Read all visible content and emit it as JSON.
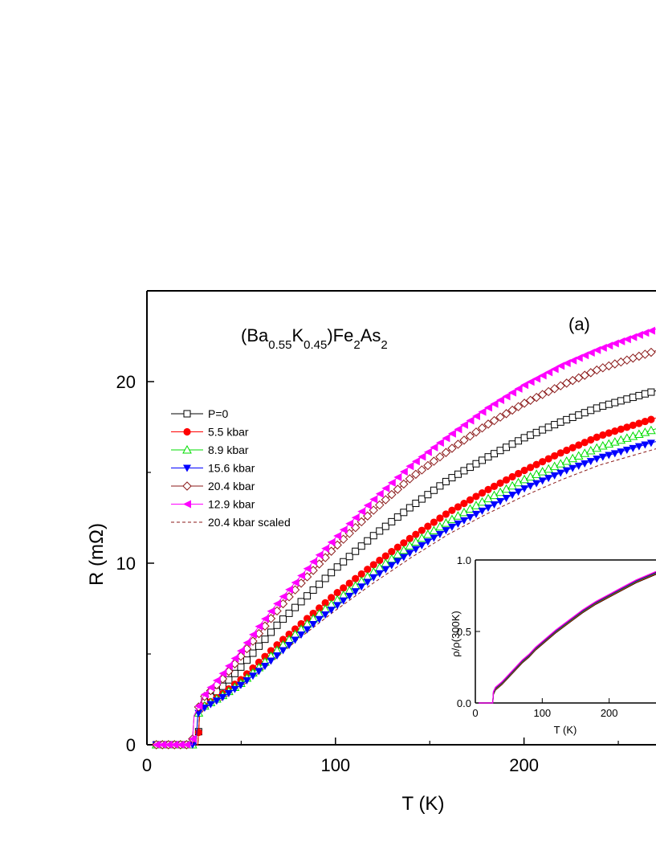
{
  "chart_data": {
    "type": "scatter",
    "xlabel": "T (K)",
    "ylabel": "R (mΩ)",
    "xlim": [
      0,
      270
    ],
    "ylim": [
      0,
      25
    ],
    "xticks": [
      0,
      100,
      200
    ],
    "yticks": [
      0,
      10,
      20
    ],
    "formula": {
      "open": "(Ba",
      "sub1": "0.55",
      "k": "K",
      "sub2": "0.45",
      "close": ")Fe",
      "sub3": "2",
      "as": "As",
      "sub4": "2"
    },
    "panel_label": "(a)",
    "legend_position": "left",
    "series": [
      {
        "name": "P=0",
        "marker": "open-square",
        "color": "#000000",
        "tc": 28,
        "points": [
          [
            5,
            0
          ],
          [
            20,
            0
          ],
          [
            27,
            0
          ],
          [
            28,
            1.8
          ],
          [
            30,
            2.3
          ],
          [
            40,
            3.2
          ],
          [
            50,
            4.3
          ],
          [
            60,
            5.5
          ],
          [
            70,
            6.7
          ],
          [
            80,
            7.7
          ],
          [
            90,
            8.7
          ],
          [
            100,
            9.7
          ],
          [
            120,
            11.5
          ],
          [
            140,
            13.1
          ],
          [
            160,
            14.6
          ],
          [
            180,
            15.8
          ],
          [
            200,
            16.9
          ],
          [
            220,
            17.8
          ],
          [
            240,
            18.6
          ],
          [
            270,
            19.5
          ]
        ]
      },
      {
        "name": "5.5 kbar",
        "marker": "filled-circle",
        "color": "#ff0000",
        "tc": 28,
        "points": [
          [
            5,
            0
          ],
          [
            20,
            0
          ],
          [
            27,
            0
          ],
          [
            28,
            1.7
          ],
          [
            30,
            2.1
          ],
          [
            40,
            2.8
          ],
          [
            50,
            3.6
          ],
          [
            60,
            4.6
          ],
          [
            70,
            5.6
          ],
          [
            80,
            6.5
          ],
          [
            90,
            7.4
          ],
          [
            100,
            8.3
          ],
          [
            120,
            9.9
          ],
          [
            140,
            11.4
          ],
          [
            160,
            12.8
          ],
          [
            180,
            14.0
          ],
          [
            200,
            15.1
          ],
          [
            220,
            16.1
          ],
          [
            240,
            17.0
          ],
          [
            270,
            18.0
          ]
        ]
      },
      {
        "name": "8.9 kbar",
        "marker": "open-triangle-up",
        "color": "#00dd00",
        "tc": 27,
        "points": [
          [
            5,
            0
          ],
          [
            20,
            0
          ],
          [
            26,
            0
          ],
          [
            27,
            1.7
          ],
          [
            30,
            2.1
          ],
          [
            40,
            2.7
          ],
          [
            50,
            3.4
          ],
          [
            60,
            4.3
          ],
          [
            70,
            5.3
          ],
          [
            80,
            6.2
          ],
          [
            90,
            7.1
          ],
          [
            100,
            7.9
          ],
          [
            120,
            9.5
          ],
          [
            140,
            11.0
          ],
          [
            160,
            12.3
          ],
          [
            180,
            13.5
          ],
          [
            200,
            14.6
          ],
          [
            220,
            15.5
          ],
          [
            240,
            16.4
          ],
          [
            270,
            17.4
          ]
        ]
      },
      {
        "name": "15.6 kbar",
        "marker": "filled-triangle-down",
        "color": "#0000ff",
        "tc": 27,
        "points": [
          [
            5,
            0
          ],
          [
            20,
            0
          ],
          [
            26,
            0
          ],
          [
            27,
            1.7
          ],
          [
            30,
            2.0
          ],
          [
            40,
            2.6
          ],
          [
            50,
            3.3
          ],
          [
            60,
            4.1
          ],
          [
            70,
            5.0
          ],
          [
            80,
            5.9
          ],
          [
            90,
            6.8
          ],
          [
            100,
            7.6
          ],
          [
            120,
            9.2
          ],
          [
            140,
            10.6
          ],
          [
            160,
            11.9
          ],
          [
            180,
            13.0
          ],
          [
            200,
            14.1
          ],
          [
            220,
            15.0
          ],
          [
            240,
            15.8
          ],
          [
            270,
            16.7
          ]
        ]
      },
      {
        "name": "20.4 kbar",
        "marker": "open-diamond",
        "color": "#8b1a1a",
        "tc": 25,
        "points": [
          [
            5,
            0
          ],
          [
            20,
            0
          ],
          [
            24,
            0
          ],
          [
            25,
            1.6
          ],
          [
            30,
            2.6
          ],
          [
            40,
            3.6
          ],
          [
            50,
            4.9
          ],
          [
            60,
            6.2
          ],
          [
            70,
            7.5
          ],
          [
            80,
            8.7
          ],
          [
            90,
            9.8
          ],
          [
            100,
            10.9
          ],
          [
            120,
            12.9
          ],
          [
            140,
            14.7
          ],
          [
            160,
            16.2
          ],
          [
            180,
            17.6
          ],
          [
            200,
            18.8
          ],
          [
            220,
            19.8
          ],
          [
            240,
            20.7
          ],
          [
            270,
            21.7
          ]
        ]
      },
      {
        "name": "12.9 kbar",
        "marker": "filled-triangle-left",
        "color": "#ff00ff",
        "tc": 25,
        "points": [
          [
            5,
            0
          ],
          [
            20,
            0
          ],
          [
            24,
            0
          ],
          [
            25,
            1.6
          ],
          [
            30,
            2.7
          ],
          [
            40,
            3.9
          ],
          [
            50,
            5.2
          ],
          [
            60,
            6.6
          ],
          [
            70,
            7.9
          ],
          [
            80,
            9.1
          ],
          [
            90,
            10.3
          ],
          [
            100,
            11.4
          ],
          [
            120,
            13.5
          ],
          [
            140,
            15.4
          ],
          [
            160,
            17.0
          ],
          [
            180,
            18.5
          ],
          [
            200,
            19.8
          ],
          [
            220,
            20.9
          ],
          [
            240,
            21.8
          ],
          [
            270,
            22.9
          ]
        ]
      }
    ],
    "dashed_series": {
      "name": "20.4 kbar scaled",
      "color": "#8b1a1a",
      "points": [
        [
          5,
          0
        ],
        [
          20,
          0
        ],
        [
          26,
          0
        ],
        [
          27,
          1.5
        ],
        [
          30,
          1.9
        ],
        [
          40,
          2.5
        ],
        [
          50,
          3.2
        ],
        [
          60,
          4.0
        ],
        [
          70,
          4.9
        ],
        [
          80,
          5.8
        ],
        [
          90,
          6.6
        ],
        [
          100,
          7.4
        ],
        [
          120,
          8.9
        ],
        [
          140,
          10.3
        ],
        [
          160,
          11.6
        ],
        [
          180,
          12.7
        ],
        [
          200,
          13.7
        ],
        [
          220,
          14.6
        ],
        [
          240,
          15.4
        ],
        [
          270,
          16.3
        ]
      ]
    },
    "inset": {
      "type": "line",
      "xlabel": "T (K)",
      "ylabel": "ρ/ρ(300K)",
      "xlim": [
        0,
        270
      ],
      "ylim": [
        0,
        1.0
      ],
      "xticks": [
        0,
        100,
        200
      ],
      "yticks": [
        "0.0",
        "0.5",
        "1.0"
      ],
      "colors": [
        "#000000",
        "#ff0000",
        "#00cc00",
        "#0000ff",
        "#8b1a1a",
        "#ff00ff"
      ],
      "points": [
        [
          5,
          0
        ],
        [
          26,
          0
        ],
        [
          27,
          0.07
        ],
        [
          30,
          0.1
        ],
        [
          40,
          0.14
        ],
        [
          50,
          0.19
        ],
        [
          60,
          0.24
        ],
        [
          70,
          0.29
        ],
        [
          80,
          0.33
        ],
        [
          90,
          0.38
        ],
        [
          100,
          0.42
        ],
        [
          120,
          0.5
        ],
        [
          140,
          0.57
        ],
        [
          160,
          0.64
        ],
        [
          180,
          0.7
        ],
        [
          200,
          0.75
        ],
        [
          220,
          0.8
        ],
        [
          240,
          0.85
        ],
        [
          270,
          0.91
        ]
      ]
    }
  }
}
